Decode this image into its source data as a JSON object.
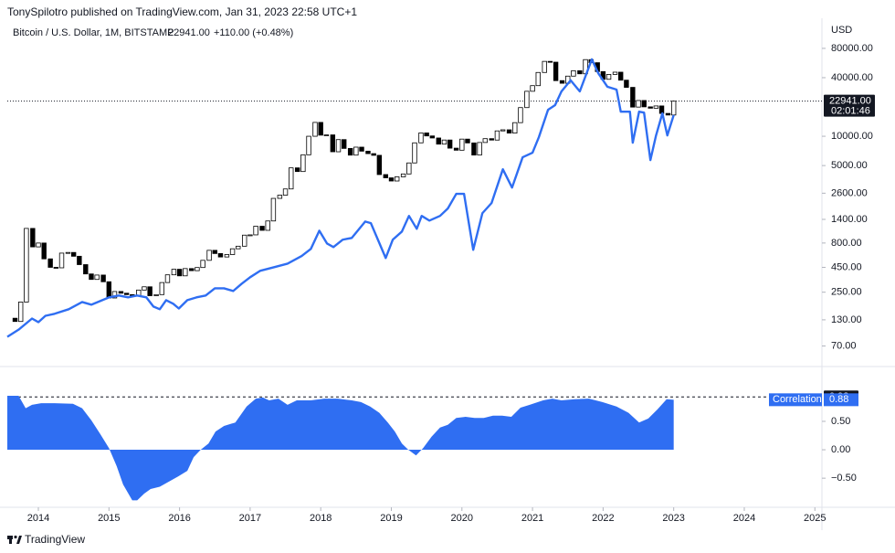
{
  "header": {
    "publisher": "TonySpilotro published on TradingView.com, Jan 31, 2023 22:58 UTC+1",
    "symbol": "Bitcoin / U.S. Dollar, 1M, BITSTAMP",
    "price": "22941.00",
    "change": "+110.00 (+0.48%)"
  },
  "footer": {
    "brand": "TradingView"
  },
  "chart_data": [
    {
      "type": "candlestick",
      "y_unit": "USD",
      "log_scale": true,
      "grid": false,
      "xlim": [
        2013.56,
        2025.1
      ],
      "ylim": [
        44,
        163000
      ],
      "yticks": [
        {
          "value": 80000,
          "label": "80000.00"
        },
        {
          "value": 40000,
          "label": "40000.00"
        },
        {
          "value": 10000,
          "label": "10000.00"
        },
        {
          "value": 5000,
          "label": "5000.00"
        },
        {
          "value": 2600,
          "label": "2600.00"
        },
        {
          "value": 1400,
          "label": "1400.00"
        },
        {
          "value": 800,
          "label": "800.00"
        },
        {
          "value": 450,
          "label": "450.00"
        },
        {
          "value": 250,
          "label": "250.00"
        },
        {
          "value": 130,
          "label": "130.00"
        },
        {
          "value": 70,
          "label": "70.00"
        }
      ],
      "last_price": {
        "value": 22941,
        "label": "22941.00"
      },
      "countdown": "02:01:46",
      "series": [
        {
          "type": "candlestick",
          "up_color": "#ffffff",
          "down_color": "#000000",
          "border_color": "#000000",
          "x": [
            2013.58,
            2013.67,
            2013.75,
            2013.83,
            2013.92,
            2014,
            2014.08,
            2014.17,
            2014.25,
            2014.33,
            2014.42,
            2014.5,
            2014.58,
            2014.67,
            2014.75,
            2014.83,
            2014.92,
            2015,
            2015.08,
            2015.17,
            2015.25,
            2015.33,
            2015.42,
            2015.5,
            2015.58,
            2015.67,
            2015.75,
            2015.83,
            2015.92,
            2016,
            2016.08,
            2016.17,
            2016.25,
            2016.33,
            2016.42,
            2016.5,
            2016.58,
            2016.67,
            2016.75,
            2016.83,
            2016.92,
            2017,
            2017.08,
            2017.17,
            2017.25,
            2017.33,
            2017.42,
            2017.5,
            2017.58,
            2017.67,
            2017.75,
            2017.83,
            2017.92,
            2018,
            2018.08,
            2018.17,
            2018.25,
            2018.33,
            2018.42,
            2018.5,
            2018.58,
            2018.67,
            2018.75,
            2018.83,
            2018.92,
            2019,
            2019.08,
            2019.17,
            2019.25,
            2019.33,
            2019.42,
            2019.5,
            2019.58,
            2019.67,
            2019.75,
            2019.83,
            2019.92,
            2020,
            2020.08,
            2020.17,
            2020.25,
            2020.33,
            2020.42,
            2020.5,
            2020.58,
            2020.67,
            2020.75,
            2020.83,
            2020.92,
            2021,
            2021.08,
            2021.17,
            2021.25,
            2021.33,
            2021.42,
            2021.5,
            2021.58,
            2021.67,
            2021.75,
            2021.83,
            2021.92,
            2022,
            2022.08,
            2022.17,
            2022.25,
            2022.33,
            2022.42,
            2022.5,
            2022.58,
            2022.67,
            2022.75,
            2022.83,
            2022.92,
            2023
          ],
          "values": [
            135,
            125,
            198,
            1130,
            730,
            800,
            550,
            450,
            445,
            630,
            640,
            585,
            480,
            385,
            338,
            375,
            320,
            218,
            254,
            244,
            236,
            230,
            263,
            284,
            230,
            236,
            314,
            377,
            430,
            368,
            437,
            416,
            448,
            531,
            673,
            624,
            575,
            609,
            698,
            742,
            964,
            970,
            1190,
            1080,
            1348,
            2300,
            2480,
            2875,
            4735,
            4340,
            6450,
            10000,
            13880,
            10265,
            10330,
            6930,
            9240,
            7500,
            6400,
            7730,
            7030,
            6630,
            6370,
            4040,
            3740,
            3470,
            3830,
            4100,
            5320,
            8560,
            10820,
            10080,
            9600,
            8300,
            9150,
            7550,
            7190,
            9350,
            8540,
            6410,
            8630,
            9450,
            9140,
            11350,
            11650,
            10780,
            13800,
            19700,
            28990,
            33110,
            45240,
            58800,
            57720,
            37300,
            35040,
            41490,
            47130,
            43820,
            61300,
            57000,
            46200,
            38480,
            43190,
            45540,
            37700,
            31800,
            19940,
            23300,
            20050,
            19420,
            20490,
            17170,
            16530,
            22941
          ]
        },
        {
          "type": "line",
          "color": "#2f6ef2",
          "x": [
            2013.56,
            2013.72,
            2013.91,
            2014,
            2014.1,
            2014.23,
            2014.43,
            2014.62,
            2014.75,
            2015,
            2015.14,
            2015.27,
            2015.4,
            2015.53,
            2015.63,
            2015.72,
            2015.81,
            2015.91,
            2015.99,
            2016.11,
            2016.24,
            2016.37,
            2016.5,
            2016.63,
            2016.76,
            2016.88,
            2017,
            2017.14,
            2017.34,
            2017.53,
            2017.73,
            2017.86,
            2017.98,
            2018.09,
            2018.18,
            2018.31,
            2018.44,
            2018.63,
            2018.71,
            2018.81,
            2018.92,
            2019.02,
            2019.15,
            2019.25,
            2019.36,
            2019.43,
            2019.54,
            2019.69,
            2019.8,
            2019.92,
            2020.03,
            2020.16,
            2020.29,
            2020.42,
            2020.58,
            2020.71,
            2020.86,
            2021,
            2021.09,
            2021.22,
            2021.32,
            2021.41,
            2021.54,
            2021.67,
            2021.84,
            2021.93,
            2022.06,
            2022.19,
            2022.25,
            2022.38,
            2022.42,
            2022.51,
            2022.58,
            2022.67,
            2022.75,
            2022.84,
            2022.91,
            2023
          ],
          "values": [
            87,
            103,
            134,
            123,
            143,
            150,
            167,
            198,
            186,
            221,
            231,
            221,
            231,
            221,
            178,
            167,
            207,
            190,
            170,
            207,
            221,
            231,
            274,
            274,
            257,
            305,
            356,
            414,
            452,
            491,
            588,
            696,
            1070,
            790,
            727,
            865,
            903,
            1330,
            1280,
            865,
            561,
            865,
            1050,
            1520,
            1120,
            1520,
            1360,
            1520,
            1810,
            2560,
            2560,
            681,
            1620,
            2060,
            4580,
            2970,
            6080,
            6780,
            9790,
            18700,
            20900,
            28900,
            37600,
            28900,
            61700,
            44600,
            32300,
            30200,
            17900,
            17900,
            8590,
            17900,
            17500,
            5690,
            10200,
            17200,
            10200,
            16500
          ]
        }
      ]
    },
    {
      "type": "area",
      "level": 0.93,
      "grid": false,
      "xlim": [
        2013.56,
        2025.1
      ],
      "ylim": [
        -0.98,
        1.4
      ],
      "xticks": [
        2014,
        2015,
        2016,
        2017,
        2018,
        2019,
        2020,
        2021,
        2022,
        2023,
        2024,
        2025
      ],
      "yticks": [
        {
          "value": 0.5,
          "label": "0.50"
        },
        {
          "value": 0,
          "label": "0.00"
        },
        {
          "value": -0.5,
          "label": "−0.50"
        }
      ],
      "series": [
        {
          "name": "Correlation",
          "color": "#2f6ef2",
          "x": [
            2013.56,
            2013.72,
            2013.82,
            2013.91,
            2014.04,
            2014.23,
            2014.49,
            2014.62,
            2014.75,
            2014.88,
            2015,
            2015.11,
            2015.2,
            2015.33,
            2015.4,
            2015.5,
            2015.59,
            2015.72,
            2015.85,
            2015.98,
            2016.11,
            2016.2,
            2016.3,
            2016.41,
            2016.51,
            2016.63,
            2016.79,
            2016.95,
            2017.08,
            2017.18,
            2017.27,
            2017.4,
            2017.53,
            2017.66,
            2017.86,
            2018.05,
            2018.24,
            2018.44,
            2018.57,
            2018.7,
            2018.83,
            2018.95,
            2019.05,
            2019.15,
            2019.24,
            2019.35,
            2019.45,
            2019.57,
            2019.69,
            2019.8,
            2019.92,
            2020.05,
            2020.18,
            2020.31,
            2020.44,
            2020.57,
            2020.7,
            2020.83,
            2020.96,
            2021.15,
            2021.28,
            2021.41,
            2021.6,
            2021.8,
            2021.99,
            2022.19,
            2022.36,
            2022.51,
            2022.64,
            2022.77,
            2022.9,
            2023
          ],
          "values": [
            0.95,
            0.95,
            0.73,
            0.79,
            0.82,
            0.82,
            0.81,
            0.73,
            0.52,
            0.27,
            0.03,
            -0.29,
            -0.61,
            -0.89,
            -0.89,
            -0.77,
            -0.69,
            -0.65,
            -0.56,
            -0.47,
            -0.37,
            -0.13,
            0,
            0.11,
            0.32,
            0.42,
            0.48,
            0.76,
            0.9,
            0.92,
            0.87,
            0.9,
            0.79,
            0.87,
            0.87,
            0.9,
            0.9,
            0.87,
            0.84,
            0.76,
            0.65,
            0.48,
            0.32,
            0.11,
            0,
            -0.1,
            0.03,
            0.23,
            0.39,
            0.44,
            0.56,
            0.58,
            0.56,
            0.56,
            0.6,
            0.6,
            0.58,
            0.74,
            0.79,
            0.87,
            0.9,
            0.87,
            0.89,
            0.9,
            0.84,
            0.76,
            0.65,
            0.48,
            0.55,
            0.71,
            0.89,
            0.88
          ]
        }
      ]
    }
  ]
}
